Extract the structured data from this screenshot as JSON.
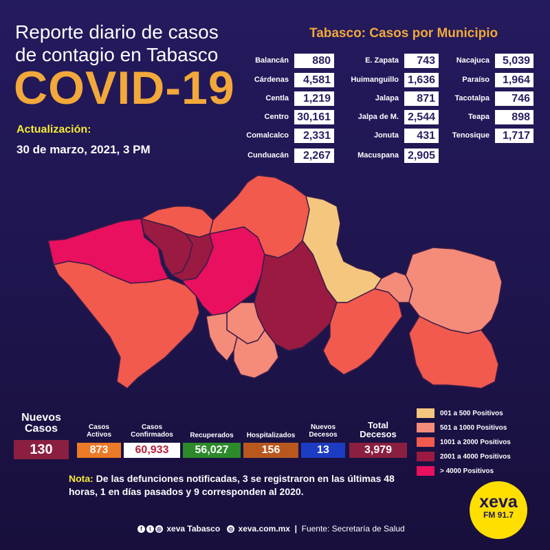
{
  "header": {
    "title": "Reporte diario de casos de contagio en Tabasco",
    "headline": "COVID-19",
    "update_label": "Actualización:",
    "update_date": "30 de marzo, 2021, 3 PM"
  },
  "municipios": {
    "title": "Tabasco: Casos por Municipio",
    "col1": [
      {
        "name": "Balancán",
        "value": "880"
      },
      {
        "name": "Cárdenas",
        "value": "4,581"
      },
      {
        "name": "Centla",
        "value": "1,219"
      },
      {
        "name": "Centro",
        "value": "30,161"
      },
      {
        "name": "Comalcalco",
        "value": "2,331"
      },
      {
        "name": "Cunduacán",
        "value": "2,267"
      }
    ],
    "col2": [
      {
        "name": "E. Zapata",
        "value": "743"
      },
      {
        "name": "Huimanguillo",
        "value": "1,636"
      },
      {
        "name": "Jalapa",
        "value": "871"
      },
      {
        "name": "Jalpa de M.",
        "value": "2,544"
      },
      {
        "name": "Jonuta",
        "value": "431"
      },
      {
        "name": "Macuspana",
        "value": "2,905"
      }
    ],
    "col3": [
      {
        "name": "Nacajuca",
        "value": "5,039"
      },
      {
        "name": "Paraíso",
        "value": "1,964"
      },
      {
        "name": "Tacotalpa",
        "value": "746"
      },
      {
        "name": "Teapa",
        "value": "898"
      },
      {
        "name": "Tenosique",
        "value": "1,717"
      }
    ]
  },
  "stats": {
    "nuevos_casos": {
      "label": "Nuevos Casos",
      "value": "130",
      "color": "#8b1f3f"
    },
    "activos": {
      "label": "Casos Activos",
      "value": "873",
      "color": "#ec7a26"
    },
    "confirmados": {
      "label": "Casos Confirmados",
      "value": "60,933",
      "color": "#ffffff"
    },
    "recuperados": {
      "label": "Recuperados",
      "value": "56,027",
      "color": "#2d8a2a"
    },
    "hospitalizados": {
      "label": "Hospitalizados",
      "value": "156",
      "color": "#b8581f"
    },
    "nuevos_decesos": {
      "label": "Nuevos Decesos",
      "value": "13",
      "color": "#1d3cc4"
    },
    "total_decesos": {
      "label": "Total Decesos",
      "value": "3,979",
      "color": "#8b1f3f"
    }
  },
  "legend": [
    {
      "label": "001 a 500 Positivos",
      "color": "#f5c77e"
    },
    {
      "label": "501 a 1000 Positivos",
      "color": "#f58b79"
    },
    {
      "label": "1001 a 2000 Positivos",
      "color": "#f25a4e"
    },
    {
      "label": "2001 a 4000 Positivos",
      "color": "#9a1a42"
    },
    {
      "label": "> 4000 Positivos",
      "color": "#e8105f"
    }
  ],
  "nota": {
    "label": "Nota:",
    "text": "De las defunciones notificadas, 3 se registraron en las últimas 48 horas, 1 en días pasados y 9 corresponden al 2020."
  },
  "footer": {
    "social": "xeva Tabasco",
    "web": "xeva.com.mx",
    "source": "Fuente: Secretaría de Salud"
  },
  "logo": {
    "brand": "xeva",
    "freq": "FM 91.7"
  },
  "icons": [
    "facebook-icon",
    "twitter-icon",
    "instagram-icon",
    "web-icon"
  ]
}
